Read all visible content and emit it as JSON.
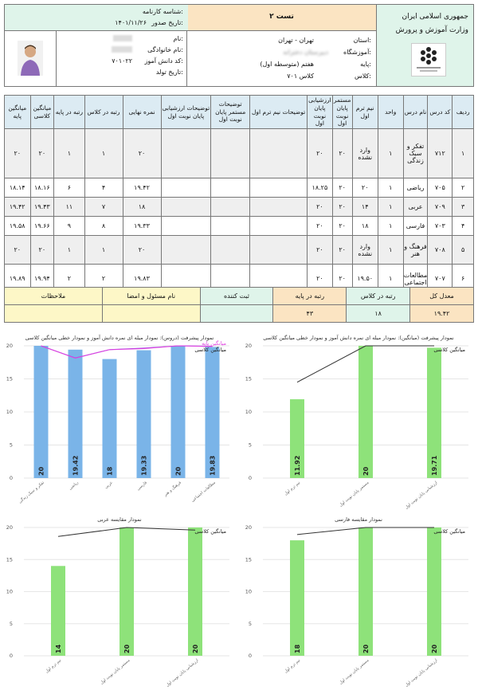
{
  "header": {
    "country": "جمهوری اسلامی ایران",
    "ministry": "وزارت آموزش و پرورش",
    "test_title": "تست ۲",
    "report_id_label": "شناسه کارنامه:",
    "report_id_value": "",
    "issue_date_label": "تاریخ صدور:",
    "issue_date_value": "۱۴۰۱/۱۱/۲۶",
    "province_label": "استان:",
    "province_value": "تهران - تهران",
    "school_label": "آموزشگاه:",
    "school_value": "دبیرستان دخترانه",
    "grade_label": "پایه:",
    "grade_value": "هفتم (متوسطه اول)",
    "class_label": "کلاس:",
    "class_value": "کلاس ۷۰۱",
    "name_label": "نام:",
    "name_value": "",
    "family_label": "نام خانوادگی:",
    "family_value": "",
    "student_code_label": "کد دانش آموز:",
    "student_code_value": "۷۰۱۰۲۲",
    "birth_label": "تاریخ تولد:",
    "birth_value": ""
  },
  "grades": {
    "headers": [
      "ردیف",
      "کد درس",
      "نام درس",
      "واحد",
      "نیم ترم اول",
      "مستمر پایان نوبت اول",
      "ارزشیابی پایان نوبت اول",
      "توضیحات نیم ترم اول",
      "توضیحات مستمر پایان نوبت اول",
      "توضیحات ارزشیابی پایان نوبت اول",
      "نمره نهایی",
      "رتبه در کلاس",
      "رتبه در پایه",
      "میانگین کلاسی",
      "میانگین پایه"
    ],
    "rows": [
      {
        "row": "۱",
        "code": "۷۱۲",
        "name": "تفکر و سبک زندگی",
        "unit": "۱",
        "midterm": "وارد نشده",
        "cont": "۲۰",
        "final_eval": "۲۰",
        "final": "۲۰",
        "rank_class": "۱",
        "rank_grade": "۱",
        "avg_class": "۲۰",
        "avg_grade": "۲۰"
      },
      {
        "row": "۲",
        "code": "۷۰۵",
        "name": "ریاضی",
        "unit": "۱",
        "midterm": "۲۰",
        "cont": "۲۰",
        "final_eval": "۱۸.۲۵",
        "final": "۱۹.۴۲",
        "rank_class": "۴",
        "rank_grade": "۶",
        "avg_class": "۱۸.۱۶",
        "avg_grade": "۱۸.۱۴"
      },
      {
        "row": "۳",
        "code": "۷۰۹",
        "name": "عربی",
        "unit": "۱",
        "midterm": "۱۴",
        "cont": "۲۰",
        "final_eval": "۲۰",
        "final": "۱۸",
        "rank_class": "۷",
        "rank_grade": "۱۱",
        "avg_class": "۱۹.۴۳",
        "avg_grade": "۱۹.۴۲"
      },
      {
        "row": "۴",
        "code": "۷۰۳",
        "name": "فارسی",
        "unit": "۱",
        "midterm": "۱۸",
        "cont": "۲۰",
        "final_eval": "۲۰",
        "final": "۱۹.۳۳",
        "rank_class": "۸",
        "rank_grade": "۹",
        "avg_class": "۱۹.۶۶",
        "avg_grade": "۱۹.۵۸"
      },
      {
        "row": "۵",
        "code": "۷۰۸",
        "name": "فرهنگ و هنر",
        "unit": "۱",
        "midterm": "وارد نشده",
        "cont": "۲۰",
        "final_eval": "۲۰",
        "final": "۲۰",
        "rank_class": "۱",
        "rank_grade": "۱",
        "avg_class": "۲۰",
        "avg_grade": "۲۰"
      },
      {
        "row": "۶",
        "code": "۷۰۷",
        "name": "مطالعات اجتماعی",
        "unit": "۱",
        "midterm": "۱۹.۵۰",
        "cont": "۲۰",
        "final_eval": "۲۰",
        "final": "۱۹.۸۳",
        "rank_class": "۲",
        "rank_grade": "۲",
        "avg_class": "۱۹.۹۴",
        "avg_grade": "۱۹.۸۹"
      }
    ]
  },
  "summary": {
    "labels": [
      "معدل کل",
      "رتبه در کلاس",
      "رتبه در پایه",
      "ثبت کننده",
      "نام مسئول و امضا",
      "ملاحظات"
    ],
    "values": [
      "۱۹.۴۲",
      "۱۸",
      "۴۳",
      "",
      "",
      ""
    ]
  },
  "colors": {
    "blue_bar": "#7ab4e8",
    "green_bar": "#8ee27a",
    "magenta": "#e040e0",
    "header_blue": "#dcebf3",
    "peach": "#fbe4c2",
    "green_bg": "#dff4ea",
    "yellow": "#fdf7c7"
  },
  "chart_data": [
    {
      "type": "bar",
      "title": "نمودار پیشرفت (دروس): نمودار میله ای نمره دانش آموز و نمودار خطی میانگین کلاسی",
      "legend": [
        "میانگین کلاسی",
        "میانگین پایه"
      ],
      "categories": [
        "تفکر و سبک زندگی",
        "ریاضی",
        "عربی",
        "فارسی",
        "فرهنگ و هنر",
        "مطالعات اجتماعی"
      ],
      "values": [
        20,
        19.42,
        18,
        19.33,
        20,
        19.83
      ],
      "labels": [
        "20",
        "19.42",
        "18",
        "19.33",
        "20",
        "19.83"
      ],
      "lines": [
        {
          "name": "میانگین کلاسی",
          "values": [
            20,
            18.16,
            19.43,
            19.66,
            20,
            19.94
          ]
        },
        {
          "name": "میانگین پایه",
          "values": [
            20,
            18.14,
            19.42,
            19.58,
            20,
            19.89
          ]
        }
      ],
      "ylim": [
        0,
        20
      ],
      "yticks": [
        0,
        5,
        10,
        15,
        20
      ]
    },
    {
      "type": "bar",
      "title": "نمودار پیشرفت (میانگین): نمودار میله ای نمره دانش آموز و نمودار خطی میانگین کلاسی",
      "legend": [
        "میانگین کلاسی"
      ],
      "categories": [
        "نیم ترم اول",
        "مستمر پایان نوبت اول",
        "ارزشیابی پایان نوبت اول"
      ],
      "values": [
        11.92,
        20,
        19.71
      ],
      "labels": [
        "11.92",
        "20",
        "19.71"
      ],
      "lines": [
        {
          "name": "میانگین کلاسی",
          "values": [
            14.5,
            20,
            20
          ]
        }
      ],
      "ylim": [
        0,
        20
      ],
      "yticks": [
        0,
        5,
        10,
        15,
        20
      ]
    },
    {
      "type": "bar",
      "title": "نمودار مقایسه عربی",
      "legend": [
        "میانگین کلاسی"
      ],
      "categories": [
        "نیم ترم اول",
        "مستمر پایان نوبت اول",
        "ارزشیابی پایان نوبت اول"
      ],
      "values": [
        14,
        20,
        20
      ],
      "labels": [
        "14",
        "20",
        "20"
      ],
      "lines": [
        {
          "name": "میانگین کلاسی",
          "values": [
            18.6,
            20,
            19.6
          ]
        }
      ],
      "ylim": [
        0,
        20
      ],
      "yticks": [
        0,
        5,
        10,
        15,
        20
      ]
    },
    {
      "type": "bar",
      "title": "نمودار مقایسه فارسی",
      "legend": [
        "میانگین کلاسی"
      ],
      "categories": [
        "نیم ترم اول",
        "مستمر پایان نوبت اول",
        "ارزشیابی پایان نوبت اول"
      ],
      "values": [
        18,
        20,
        20
      ],
      "labels": [
        "18",
        "20",
        "20"
      ],
      "lines": [
        {
          "name": "میانگین کلاسی",
          "values": [
            18.9,
            20,
            20
          ]
        }
      ],
      "ylim": [
        0,
        20
      ],
      "yticks": [
        0,
        5,
        10,
        15,
        20
      ]
    }
  ]
}
